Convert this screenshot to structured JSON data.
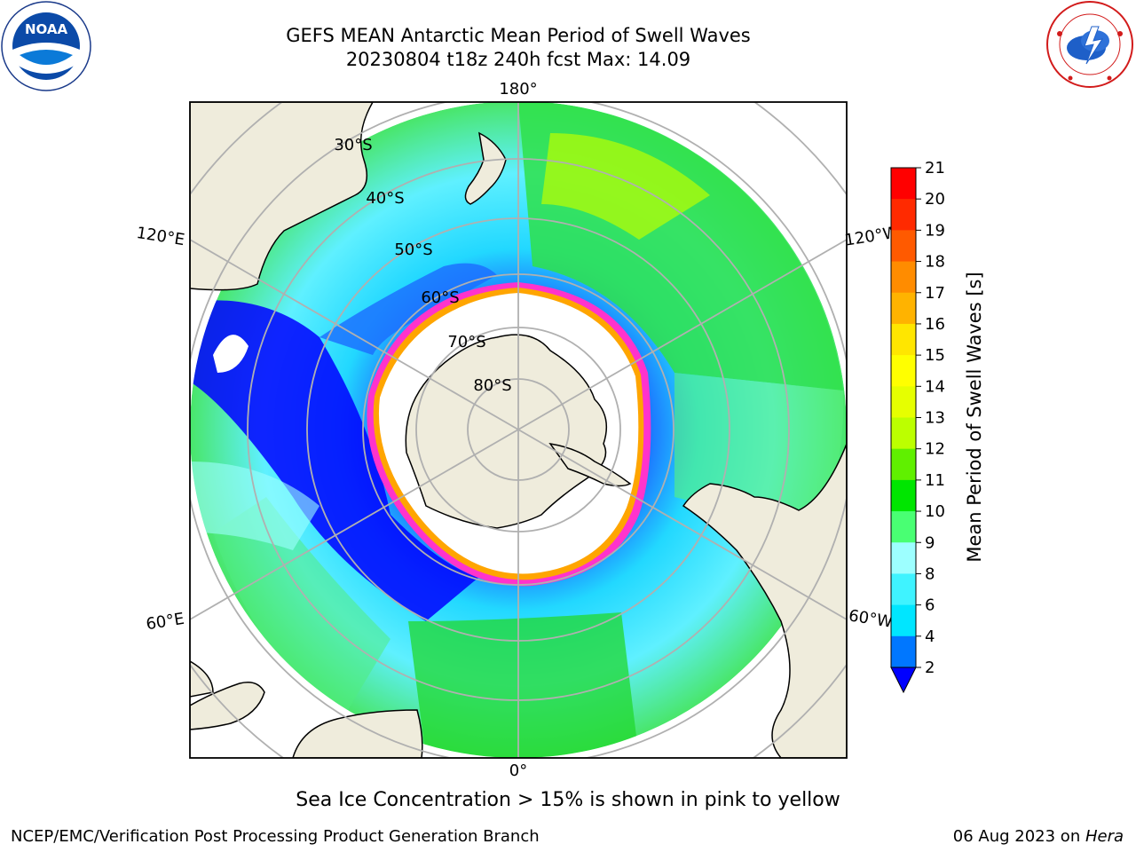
{
  "title": {
    "line1": "GEFS MEAN Antarctic Mean Period of Swell Waves",
    "line2": "20230804 t18z 240h fcst   Max: 14.09"
  },
  "map": {
    "projection": "south-polar-stereographic",
    "longitude_labels": {
      "top": "180°",
      "bottom": "0°",
      "upper_left": "120°E",
      "lower_left": "60°E",
      "upper_right": "120°W",
      "lower_right": "60°W"
    },
    "latitude_labels": [
      "30°S",
      "40°S",
      "50°S",
      "60°S",
      "70°S",
      "80°S"
    ],
    "colors": {
      "land": "#efecdc",
      "ice_free_interior": "#ffffff",
      "grid": "#b0b0b0",
      "sea_ice_edge": [
        "#ff33cc",
        "#ffa500",
        "#ffff00"
      ]
    }
  },
  "colorbar": {
    "label": "Mean Period of Swell Waves [s]",
    "ticks": [
      "2",
      "4",
      "6",
      "8",
      "9",
      "10",
      "11",
      "12",
      "13",
      "14",
      "15",
      "16",
      "17",
      "18",
      "19",
      "20",
      "21"
    ],
    "colors": [
      "#0000ff",
      "#0077ff",
      "#00e6ff",
      "#3ff3ff",
      "#9dffff",
      "#49ff73",
      "#00e600",
      "#60f000",
      "#bcff00",
      "#e6ff00",
      "#ffff00",
      "#ffe600",
      "#ffb300",
      "#ff8c00",
      "#ff5a00",
      "#ff2a00",
      "#ff0000"
    ],
    "extend": "min"
  },
  "note": "Sea Ice Concentration > 15% is shown in pink to yellow",
  "footer": {
    "left": "NCEP/EMC/Verification Post Processing Product Generation Branch",
    "right_date": "06 Aug 2023 on ",
    "right_host": "Hera"
  }
}
